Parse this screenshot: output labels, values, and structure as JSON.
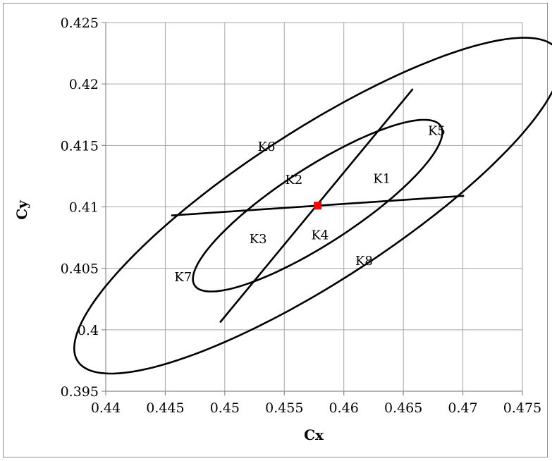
{
  "chart_data": {
    "type": "scatter",
    "title": "",
    "xlabel": "Cx",
    "ylabel": "Cy",
    "xlim": [
      0.44,
      0.475
    ],
    "ylim": [
      0.395,
      0.425
    ],
    "x_ticks": [
      "0.44",
      "0.445",
      "0.45",
      "0.455",
      "0.46",
      "0.465",
      "0.47",
      "0.475"
    ],
    "y_ticks": [
      "0.395",
      "0.4",
      "0.405",
      "0.41",
      "0.415",
      "0.42",
      "0.425"
    ],
    "grid": true,
    "legend": "none",
    "center_point": {
      "x": 0.4578,
      "y": 0.4101,
      "color": "#ff0000",
      "marker": "square"
    },
    "inner_ellipse": {
      "cx": 0.4578,
      "cy": 0.4101,
      "a": 0.0122,
      "b": 0.00312,
      "angle_deg": 32
    },
    "outer_ellipse": {
      "cx": 0.4578,
      "cy": 0.4101,
      "a": 0.0238,
      "b": 0.0062,
      "angle_deg": 32
    },
    "segments": [
      {
        "x": [
          0.4496,
          0.4658
        ],
        "y": [
          0.4006,
          0.4196
        ]
      },
      {
        "x": [
          0.4455,
          0.4701
        ],
        "y": [
          0.4093,
          0.4109
        ]
      }
    ],
    "region_labels": [
      {
        "text": "K1",
        "x": 0.4632,
        "y": 0.4123
      },
      {
        "text": "K2",
        "x": 0.4558,
        "y": 0.4122
      },
      {
        "text": "K3",
        "x": 0.4528,
        "y": 0.4074
      },
      {
        "text": "K4",
        "x": 0.458,
        "y": 0.4077
      },
      {
        "text": "K5",
        "x": 0.4678,
        "y": 0.4162
      },
      {
        "text": "K6",
        "x": 0.4535,
        "y": 0.4149
      },
      {
        "text": "K7",
        "x": 0.4465,
        "y": 0.4043
      },
      {
        "text": "K8",
        "x": 0.4617,
        "y": 0.4056
      }
    ]
  }
}
